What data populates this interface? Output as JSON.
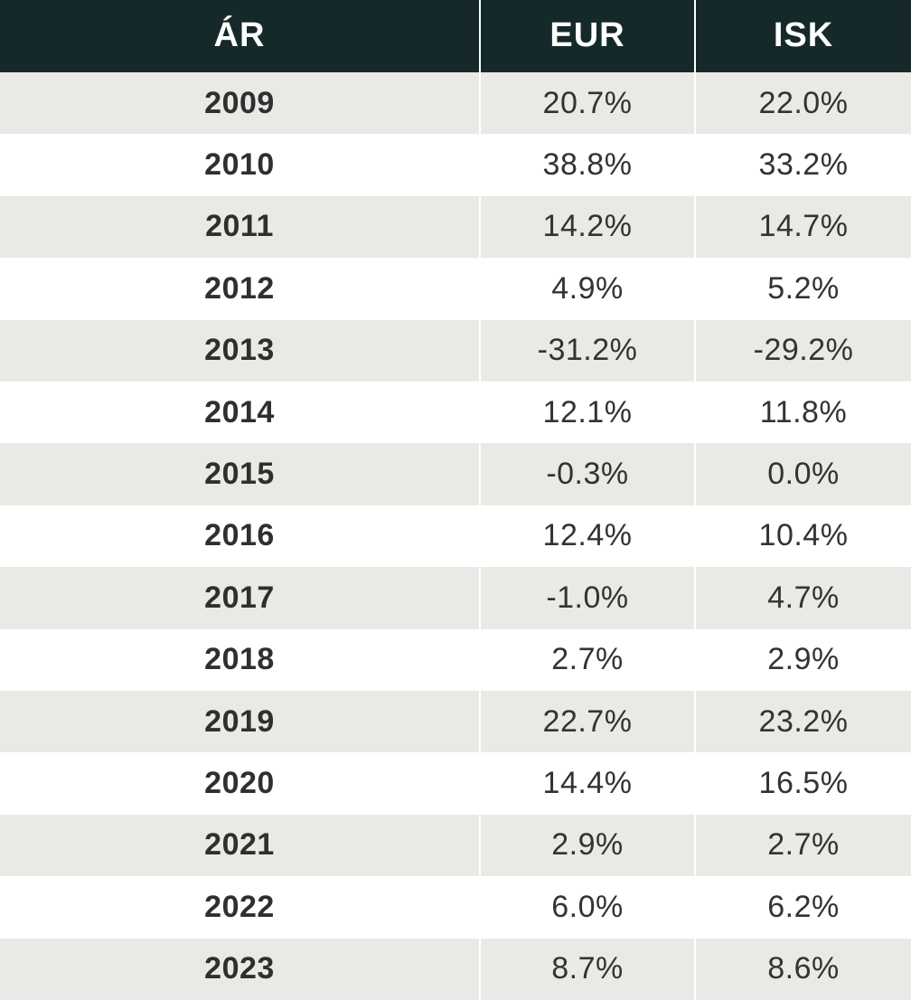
{
  "table": {
    "headers": [
      "ÁR",
      "EUR",
      "ISK"
    ],
    "rows": [
      {
        "year": "2009",
        "eur": "20.7%",
        "isk": "22.0%"
      },
      {
        "year": "2010",
        "eur": "38.8%",
        "isk": "33.2%"
      },
      {
        "year": "2011",
        "eur": "14.2%",
        "isk": "14.7%"
      },
      {
        "year": "2012",
        "eur": "4.9%",
        "isk": "5.2%"
      },
      {
        "year": "2013",
        "eur": "-31.2%",
        "isk": "-29.2%"
      },
      {
        "year": "2014",
        "eur": "12.1%",
        "isk": "11.8%"
      },
      {
        "year": "2015",
        "eur": "-0.3%",
        "isk": "0.0%"
      },
      {
        "year": "2016",
        "eur": "12.4%",
        "isk": "10.4%"
      },
      {
        "year": "2017",
        "eur": "-1.0%",
        "isk": "4.7%"
      },
      {
        "year": "2018",
        "eur": "2.7%",
        "isk": "2.9%"
      },
      {
        "year": "2019",
        "eur": "22.7%",
        "isk": "23.2%"
      },
      {
        "year": "2020",
        "eur": "14.4%",
        "isk": "16.5%"
      },
      {
        "year": "2021",
        "eur": "2.9%",
        "isk": "2.7%"
      },
      {
        "year": "2022",
        "eur": "6.0%",
        "isk": "6.2%"
      },
      {
        "year": "2023",
        "eur": "8.7%",
        "isk": "8.6%"
      }
    ]
  },
  "colors": {
    "header_bg": "#15292a",
    "header_text": "#ffffff",
    "row_odd_bg": "#ebe9e5",
    "row_even_bg": "#ffffff",
    "body_text": "#333333"
  }
}
